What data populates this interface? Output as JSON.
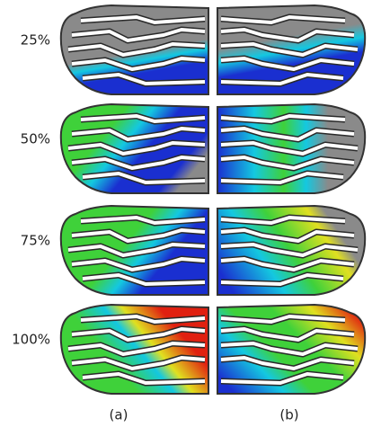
{
  "rows": [
    {
      "label": "25%"
    },
    {
      "label": "50%"
    },
    {
      "label": "75%"
    },
    {
      "label": "100%"
    }
  ],
  "columns": [
    "(a)",
    "(b)"
  ]
}
